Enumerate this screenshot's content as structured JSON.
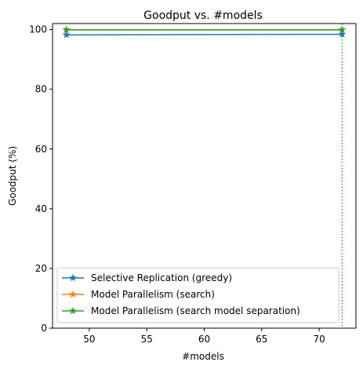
{
  "chart_data": {
    "type": "line",
    "title": "Goodput vs. #models",
    "xlabel": "#models",
    "ylabel": "Goodput (%)",
    "xlim": [
      46.8,
      73.2
    ],
    "ylim": [
      0,
      102
    ],
    "xticks": [
      50,
      55,
      60,
      65,
      70
    ],
    "yticks": [
      0,
      20,
      40,
      60,
      80,
      100
    ],
    "grid": false,
    "legend_position": "lower-left",
    "series": [
      {
        "name": "Selective Replication (greedy)",
        "color": "#1f77b4",
        "marker": "star",
        "x": [
          48,
          72
        ],
        "y": [
          98.2,
          98.4
        ]
      },
      {
        "name": "Model Parallelism (search)",
        "color": "#ff7f0e",
        "marker": "star",
        "x": [
          48,
          72
        ],
        "y": [
          99.9,
          99.9
        ]
      },
      {
        "name": "Model Parallelism (search model separation)",
        "color": "#2ca02c",
        "marker": "star",
        "x": [
          48,
          72
        ],
        "y": [
          99.9,
          99.9
        ]
      }
    ],
    "vlines": [
      {
        "x": 72,
        "color": "#2ca02c",
        "style": "dotted"
      }
    ]
  }
}
